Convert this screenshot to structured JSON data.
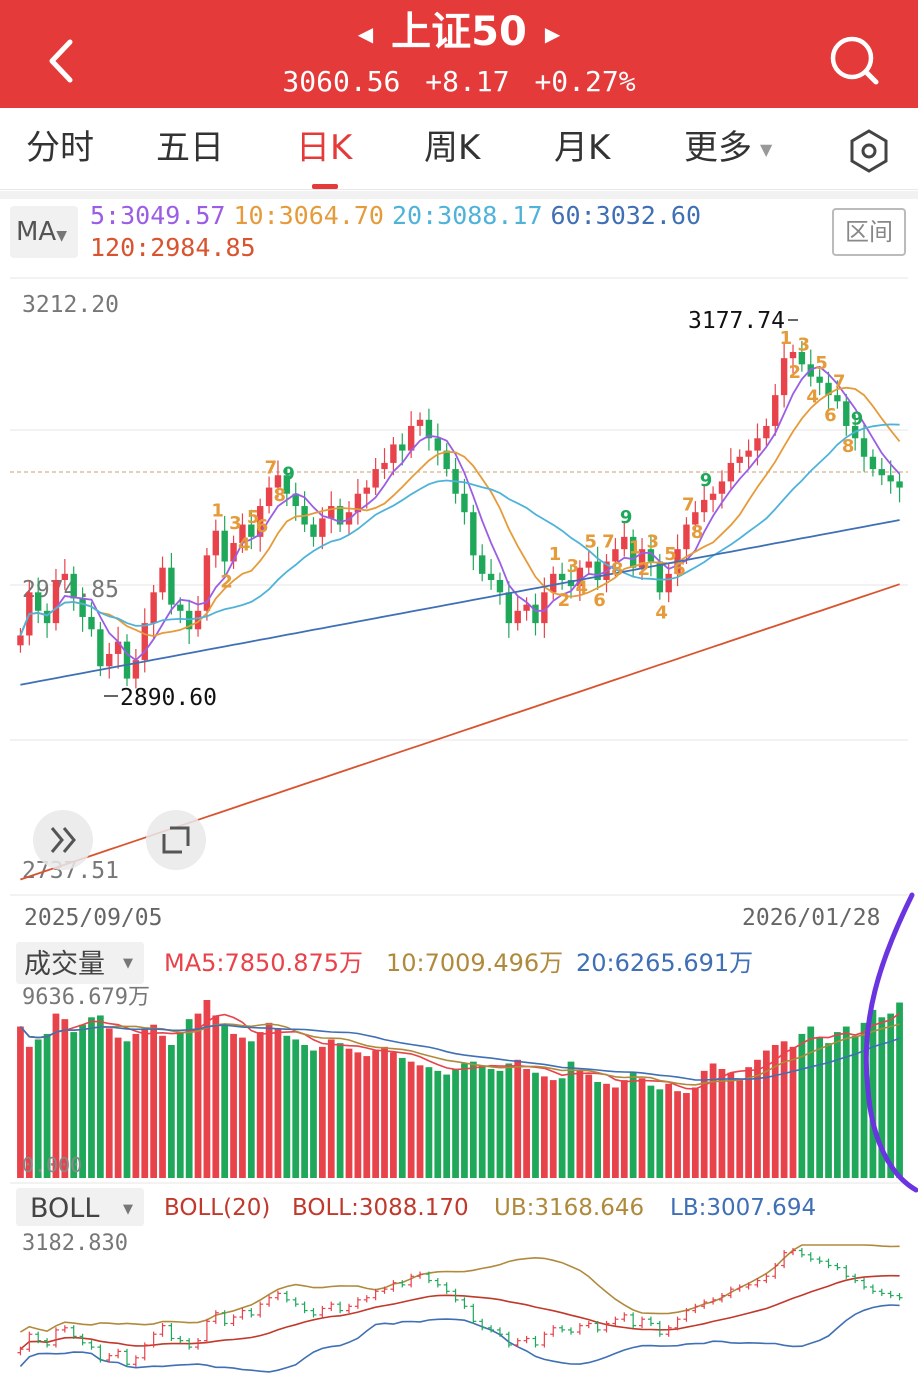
{
  "header": {
    "title": "上证50",
    "price": "3060.56",
    "change": "+8.17",
    "change_pct": "+0.27%",
    "bg_color": "#e53a3a"
  },
  "tabs": [
    {
      "label": "分时",
      "active": false
    },
    {
      "label": "五日",
      "active": false
    },
    {
      "label": "日K",
      "active": true
    },
    {
      "label": "周K",
      "active": false
    },
    {
      "label": "月K",
      "active": false
    },
    {
      "label": "更多",
      "active": false
    }
  ],
  "ma_bar": {
    "selector": "MA",
    "ma5": "5:3049.57",
    "ma10": "10:3064.70",
    "ma20": "20:3088.17",
    "ma60": "60:3032.60",
    "ma120": "120:2984.85",
    "range_button": "区间"
  },
  "price_chart": {
    "y_top_label": "3212.20",
    "y_mid_label": "2974.85",
    "y_bottom_label": "2737.51",
    "high_label": "3177.74",
    "low_label": "2890.60",
    "start_date": "2025/09/05",
    "end_date": "2026/01/28",
    "td_counts": [
      "1",
      "2",
      "3",
      "4",
      "5",
      "6",
      "7",
      "8",
      "9"
    ]
  },
  "volume_panel": {
    "selector": "成交量",
    "ma5": "MA5:7850.875万",
    "ma10": "10:7009.496万",
    "ma20": "20:6265.691万",
    "max_label": "9636.679万",
    "zero_label": "0.000"
  },
  "boll_panel": {
    "selector": "BOLL",
    "params": "BOLL(20)",
    "boll": "BOLL:3088.170",
    "ub": "UB:3168.646",
    "lb": "LB:3007.694",
    "max_label": "3182.830"
  },
  "colors": {
    "up": "#e8424b",
    "down": "#1fa85a",
    "ma5": "#9b5de5",
    "ma10": "#e59b3a",
    "ma20": "#4fb3d9",
    "ma60": "#3f6fb5",
    "ma120": "#d9532f"
  },
  "chart_data": {
    "type": "candlestick",
    "title": "上证50",
    "x_range": [
      "2025/09/05",
      "2026/01/28"
    ],
    "ylim": [
      2737.51,
      3212.2
    ],
    "last_close": 3060.56,
    "period_high": 3177.74,
    "period_low": 2890.6,
    "moving_averages": [
      {
        "name": "MA5",
        "value": 3049.57
      },
      {
        "name": "MA10",
        "value": 3064.7
      },
      {
        "name": "MA20",
        "value": 3088.17
      },
      {
        "name": "MA60",
        "value": 3032.6
      },
      {
        "name": "MA120",
        "value": 2984.85
      }
    ],
    "closes": [
      2940,
      2975,
      2960,
      2950,
      2985,
      2990,
      2970,
      2955,
      2945,
      2915,
      2925,
      2935,
      2905,
      2920,
      2950,
      2975,
      2995,
      2965,
      2960,
      2945,
      2960,
      3005,
      3025,
      3000,
      3015,
      3030,
      3020,
      3045,
      3060,
      3070,
      3055,
      3045,
      3030,
      3020,
      3035,
      3045,
      3030,
      3040,
      3055,
      3060,
      3075,
      3080,
      3095,
      3090,
      3110,
      3115,
      3100,
      3090,
      3075,
      3055,
      3040,
      3005,
      2990,
      2985,
      2975,
      2950,
      2960,
      2965,
      2950,
      2975,
      2990,
      2985,
      2980,
      2995,
      3000,
      2985,
      3000,
      3010,
      3020,
      2995,
      3010,
      3000,
      2975,
      2990,
      3010,
      3030,
      3040,
      3050,
      3055,
      3065,
      3080,
      3085,
      3090,
      3100,
      3110,
      3135,
      3165,
      3170,
      3160,
      3150,
      3145,
      3135,
      3130,
      3110,
      3100,
      3085,
      3075,
      3070,
      3065,
      3060
    ],
    "volumes": [
      8200,
      7100,
      7500,
      7800,
      8900,
      8600,
      7900,
      8300,
      8700,
      8800,
      8100,
      7600,
      7400,
      7800,
      8100,
      8300,
      7700,
      7200,
      7900,
      8600,
      8900,
      9636,
      8800,
      8300,
      7800,
      7600,
      7400,
      7900,
      8400,
      8100,
      7700,
      7500,
      7200,
      6900,
      7100,
      7500,
      7300,
      7000,
      6800,
      6600,
      6900,
      7100,
      6800,
      6500,
      6300,
      6100,
      6000,
      5800,
      5600,
      5900,
      6200,
      6300,
      6100,
      5900,
      5800,
      6200,
      6400,
      5900,
      5700,
      5500,
      5300,
      5400,
      6300,
      5800,
      5600,
      5200,
      5100,
      4900,
      5300,
      5700,
      5400,
      5000,
      4800,
      5100,
      4700,
      4600,
      4900,
      5800,
      6200,
      5900,
      5700,
      5300,
      6000,
      6400,
      6900,
      7200,
      7400,
      7100,
      7800,
      8200,
      7600,
      7300,
      7900,
      8200,
      7700,
      8400,
      9100,
      8700,
      8900,
      9500
    ],
    "boll": {
      "mid": 3088.17,
      "upper": 3168.646,
      "lower": 3007.694
    },
    "volume_ma": [
      {
        "name": "MA5",
        "value": 7850.875,
        "unit": "万"
      },
      {
        "name": "10",
        "value": 7009.496,
        "unit": "万"
      },
      {
        "name": "20",
        "value": 6265.691,
        "unit": "万"
      }
    ]
  }
}
